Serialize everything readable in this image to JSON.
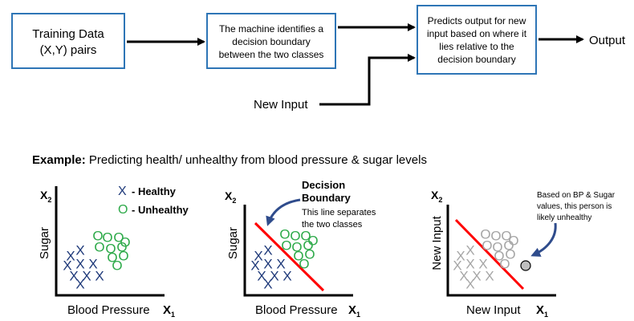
{
  "flow": {
    "box1_line1": "Training Data",
    "box1_line2": "(X,Y) pairs",
    "box2_line1": "The machine identifies a",
    "box2_line2": "decision boundary",
    "box2_line3": "between the two classes",
    "box3_line1": "Predicts output for new",
    "box3_line2": "input based on where it",
    "box3_line3": "lies relative to the",
    "box3_line4": "decision boundary",
    "output_label": "Output",
    "new_input_label": "New Input"
  },
  "example": {
    "prefix": "Example:",
    "text": " Predicting health/ unhealthy from blood pressure & sugar levels"
  },
  "plot1": {
    "y_label": "Sugar",
    "x_label": "Blood Pressure",
    "x_axis_symbol": "X",
    "x_axis_sub": "1",
    "y_axis_symbol": "X",
    "y_axis_sub": "2",
    "legend_x_marker": "X",
    "legend_x_text": "- Healthy",
    "legend_o_marker": "O",
    "legend_o_text": "- Unhealthy"
  },
  "plot2": {
    "y_label": "Sugar",
    "x_label": "Blood Pressure",
    "x_axis_symbol": "X",
    "x_axis_sub": "1",
    "y_axis_symbol": "X",
    "y_axis_sub": "2",
    "title_line1": "Decision",
    "title_line2": "Boundary",
    "note_line1": "This line separates",
    "note_line2": "the two classes"
  },
  "plot3": {
    "y_label": "New Input",
    "x_label": "New Input",
    "x_axis_symbol": "X",
    "x_axis_sub": "1",
    "y_axis_symbol": "X",
    "y_axis_sub": "2",
    "note_line1": "Based on BP & Sugar",
    "note_line2": "values, this person is",
    "note_line3": "likely unhealthy"
  },
  "markers": {
    "x_glyph": "X",
    "o_glyph": "O"
  },
  "colors": {
    "box_border": "#2E75B6",
    "healthy": "#1F3A7A",
    "unhealthy": "#2EAA4A",
    "boundary": "#FF0000",
    "faded": "#A6A6A6",
    "callout_arrow": "#2F4C8C",
    "new_point_fill": "#BFBFBF"
  }
}
